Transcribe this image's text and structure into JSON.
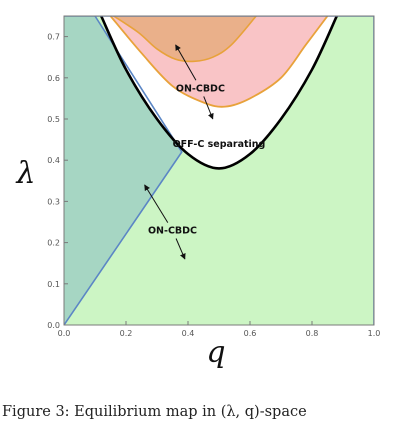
{
  "chart_data": {
    "type": "area",
    "xlabel": "q",
    "ylabel": "λ",
    "xlim": [
      0,
      1
    ],
    "ylim": [
      0,
      0.75
    ],
    "x_ticks": [
      "0.0",
      "0.2",
      "0.4",
      "0.6",
      "0.8",
      "1.0"
    ],
    "y_ticks": [
      "0.0",
      "0.1",
      "0.2",
      "0.3",
      "0.4",
      "0.5",
      "0.6",
      "0.7"
    ],
    "frame": true,
    "grid": false,
    "regions": [
      {
        "label": "ON-CBDC",
        "color": "#ccf5c4",
        "note": "lower region below the separating boundary"
      },
      {
        "label": "OFF-C separating",
        "color": "#ffffff",
        "note": "region above the black boundary curve"
      },
      {
        "label": "ON-CBDC",
        "color": "#f9c4c6",
        "note": "upper region inside the orange curve"
      }
    ],
    "curves": {
      "separating_boundary": {
        "color": "#000000",
        "points": [
          [
            0.12,
            0.75
          ],
          [
            0.2,
            0.62
          ],
          [
            0.3,
            0.5
          ],
          [
            0.4,
            0.415
          ],
          [
            0.5,
            0.38
          ],
          [
            0.6,
            0.415
          ],
          [
            0.7,
            0.5
          ],
          [
            0.8,
            0.62
          ],
          [
            0.88,
            0.75
          ]
        ]
      },
      "diagonal_line": {
        "color": "#5b86c5",
        "points": [
          [
            0.0,
            0.0
          ],
          [
            0.38,
            0.42
          ]
        ]
      },
      "teal_region_edge": {
        "color": "#5b86c5",
        "points": [
          [
            0.0,
            0.0
          ],
          [
            0.38,
            0.42
          ],
          [
            0.1,
            0.75
          ]
        ]
      },
      "orange_outer": {
        "color": "#e8a23a",
        "points": [
          [
            0.15,
            0.75
          ],
          [
            0.25,
            0.66
          ],
          [
            0.35,
            0.58
          ],
          [
            0.45,
            0.54
          ],
          [
            0.52,
            0.53
          ],
          [
            0.6,
            0.55
          ],
          [
            0.7,
            0.6
          ],
          [
            0.78,
            0.68
          ],
          [
            0.85,
            0.75
          ]
        ]
      },
      "orange_inner": {
        "color": "#e8a23a",
        "points": [
          [
            0.16,
            0.75
          ],
          [
            0.24,
            0.71
          ],
          [
            0.3,
            0.67
          ],
          [
            0.36,
            0.645
          ],
          [
            0.42,
            0.64
          ],
          [
            0.48,
            0.65
          ],
          [
            0.54,
            0.68
          ],
          [
            0.62,
            0.75
          ]
        ]
      }
    },
    "annotations": [
      {
        "text": "ON-CBDC",
        "x": 0.44,
        "y": 0.575,
        "arrow_to": [
          [
            0.36,
            0.68
          ],
          [
            0.48,
            0.5
          ]
        ]
      },
      {
        "text": "OFF-C separating",
        "x": 0.5,
        "y": 0.44
      },
      {
        "text": "ON-CBDC",
        "x": 0.35,
        "y": 0.23,
        "arrow_to": [
          [
            0.26,
            0.34
          ],
          [
            0.39,
            0.16
          ]
        ]
      }
    ]
  },
  "caption": "Figure 3: Equilibrium map in (λ, q)-space"
}
